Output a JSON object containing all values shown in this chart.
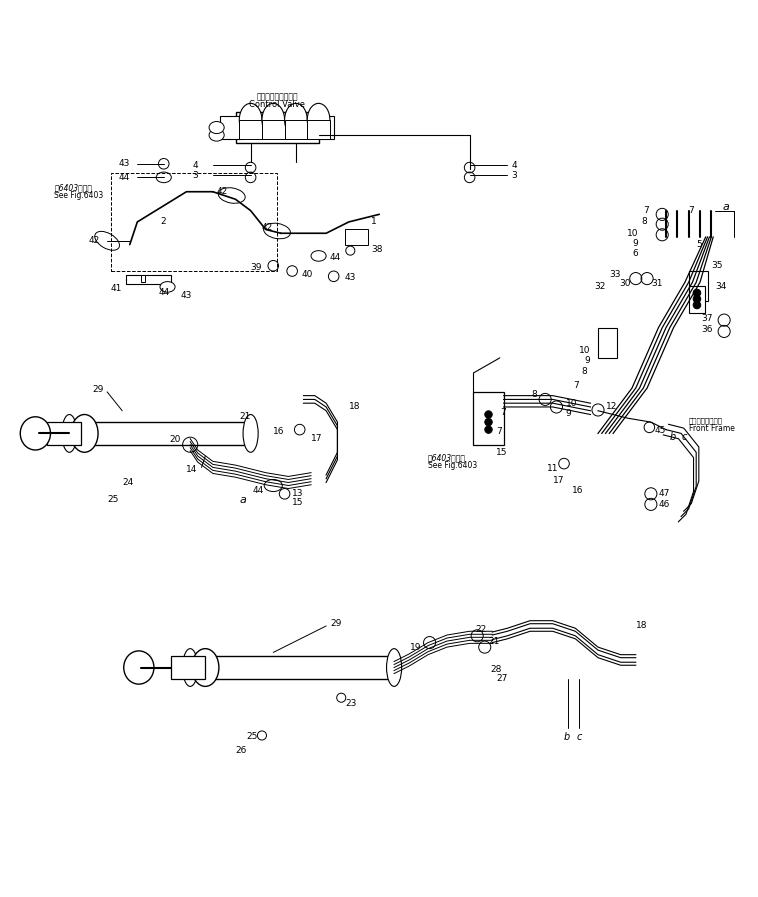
{
  "bg_color": "#ffffff",
  "line_color": "#000000",
  "fig_width": 7.58,
  "fig_height": 8.97,
  "dpi": 100,
  "labels": {
    "control_valve_jp": "コントロールバルブ",
    "control_valve_en": "Control Valve",
    "see_fig_jp1": "第6403図参照",
    "see_fig_en1": "See Fig.6403",
    "see_fig_jp2": "第6403図参照",
    "see_fig_en2": "See Fig.6403",
    "front_frame_jp": "フロントフレーム",
    "front_frame_en": "Front Frame"
  }
}
